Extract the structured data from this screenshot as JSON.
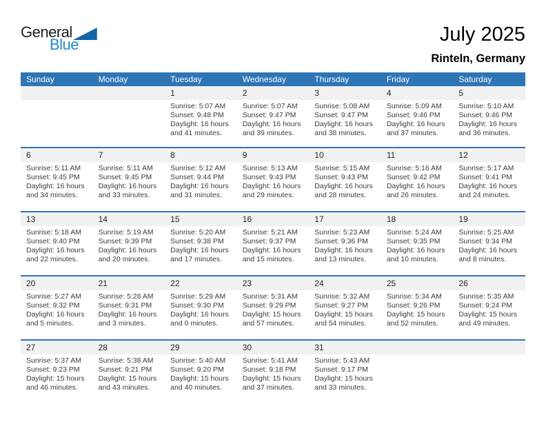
{
  "page": {
    "logo": {
      "general": "General",
      "blue": "Blue",
      "mark": "blue-triangle"
    },
    "title": "July 2025",
    "subtitle": "Rinteln, Germany"
  },
  "colors": {
    "header_blue": "#2E75B6",
    "day_band_gray": "#F1F1F1",
    "logo_blue": "#1E87D5",
    "logo_triangle_blue": "#1566A8",
    "cell_text": "#3C3C3C"
  },
  "calendar": {
    "weekdays": [
      "Sunday",
      "Monday",
      "Tuesday",
      "Wednesday",
      "Thursday",
      "Friday",
      "Saturday"
    ],
    "weeks": [
      [
        null,
        null,
        {
          "day": "1",
          "sunrise": "Sunrise: 5:07 AM",
          "sunset": "Sunset: 9:48 PM",
          "daylight1": "Daylight: 16 hours",
          "daylight2": "and 41 minutes."
        },
        {
          "day": "2",
          "sunrise": "Sunrise: 5:07 AM",
          "sunset": "Sunset: 9:47 PM",
          "daylight1": "Daylight: 16 hours",
          "daylight2": "and 39 minutes."
        },
        {
          "day": "3",
          "sunrise": "Sunrise: 5:08 AM",
          "sunset": "Sunset: 9:47 PM",
          "daylight1": "Daylight: 16 hours",
          "daylight2": "and 38 minutes."
        },
        {
          "day": "4",
          "sunrise": "Sunrise: 5:09 AM",
          "sunset": "Sunset: 9:46 PM",
          "daylight1": "Daylight: 16 hours",
          "daylight2": "and 37 minutes."
        },
        {
          "day": "5",
          "sunrise": "Sunrise: 5:10 AM",
          "sunset": "Sunset: 9:46 PM",
          "daylight1": "Daylight: 16 hours",
          "daylight2": "and 36 minutes."
        }
      ],
      [
        {
          "day": "6",
          "sunrise": "Sunrise: 5:11 AM",
          "sunset": "Sunset: 9:45 PM",
          "daylight1": "Daylight: 16 hours",
          "daylight2": "and 34 minutes."
        },
        {
          "day": "7",
          "sunrise": "Sunrise: 5:11 AM",
          "sunset": "Sunset: 9:45 PM",
          "daylight1": "Daylight: 16 hours",
          "daylight2": "and 33 minutes."
        },
        {
          "day": "8",
          "sunrise": "Sunrise: 5:12 AM",
          "sunset": "Sunset: 9:44 PM",
          "daylight1": "Daylight: 16 hours",
          "daylight2": "and 31 minutes."
        },
        {
          "day": "9",
          "sunrise": "Sunrise: 5:13 AM",
          "sunset": "Sunset: 9:43 PM",
          "daylight1": "Daylight: 16 hours",
          "daylight2": "and 29 minutes."
        },
        {
          "day": "10",
          "sunrise": "Sunrise: 5:15 AM",
          "sunset": "Sunset: 9:43 PM",
          "daylight1": "Daylight: 16 hours",
          "daylight2": "and 28 minutes."
        },
        {
          "day": "11",
          "sunrise": "Sunrise: 5:16 AM",
          "sunset": "Sunset: 9:42 PM",
          "daylight1": "Daylight: 16 hours",
          "daylight2": "and 26 minutes."
        },
        {
          "day": "12",
          "sunrise": "Sunrise: 5:17 AM",
          "sunset": "Sunset: 9:41 PM",
          "daylight1": "Daylight: 16 hours",
          "daylight2": "and 24 minutes."
        }
      ],
      [
        {
          "day": "13",
          "sunrise": "Sunrise: 5:18 AM",
          "sunset": "Sunset: 9:40 PM",
          "daylight1": "Daylight: 16 hours",
          "daylight2": "and 22 minutes."
        },
        {
          "day": "14",
          "sunrise": "Sunrise: 5:19 AM",
          "sunset": "Sunset: 9:39 PM",
          "daylight1": "Daylight: 16 hours",
          "daylight2": "and 20 minutes."
        },
        {
          "day": "15",
          "sunrise": "Sunrise: 5:20 AM",
          "sunset": "Sunset: 9:38 PM",
          "daylight1": "Daylight: 16 hours",
          "daylight2": "and 17 minutes."
        },
        {
          "day": "16",
          "sunrise": "Sunrise: 5:21 AM",
          "sunset": "Sunset: 9:37 PM",
          "daylight1": "Daylight: 16 hours",
          "daylight2": "and 15 minutes."
        },
        {
          "day": "17",
          "sunrise": "Sunrise: 5:23 AM",
          "sunset": "Sunset: 9:36 PM",
          "daylight1": "Daylight: 16 hours",
          "daylight2": "and 13 minutes."
        },
        {
          "day": "18",
          "sunrise": "Sunrise: 5:24 AM",
          "sunset": "Sunset: 9:35 PM",
          "daylight1": "Daylight: 16 hours",
          "daylight2": "and 10 minutes."
        },
        {
          "day": "19",
          "sunrise": "Sunrise: 5:25 AM",
          "sunset": "Sunset: 9:34 PM",
          "daylight1": "Daylight: 16 hours",
          "daylight2": "and 8 minutes."
        }
      ],
      [
        {
          "day": "20",
          "sunrise": "Sunrise: 5:27 AM",
          "sunset": "Sunset: 9:32 PM",
          "daylight1": "Daylight: 16 hours",
          "daylight2": "and 5 minutes."
        },
        {
          "day": "21",
          "sunrise": "Sunrise: 5:28 AM",
          "sunset": "Sunset: 9:31 PM",
          "daylight1": "Daylight: 16 hours",
          "daylight2": "and 3 minutes."
        },
        {
          "day": "22",
          "sunrise": "Sunrise: 5:29 AM",
          "sunset": "Sunset: 9:30 PM",
          "daylight1": "Daylight: 16 hours",
          "daylight2": "and 0 minutes."
        },
        {
          "day": "23",
          "sunrise": "Sunrise: 5:31 AM",
          "sunset": "Sunset: 9:29 PM",
          "daylight1": "Daylight: 15 hours",
          "daylight2": "and 57 minutes."
        },
        {
          "day": "24",
          "sunrise": "Sunrise: 5:32 AM",
          "sunset": "Sunset: 9:27 PM",
          "daylight1": "Daylight: 15 hours",
          "daylight2": "and 54 minutes."
        },
        {
          "day": "25",
          "sunrise": "Sunrise: 5:34 AM",
          "sunset": "Sunset: 9:26 PM",
          "daylight1": "Daylight: 15 hours",
          "daylight2": "and 52 minutes."
        },
        {
          "day": "26",
          "sunrise": "Sunrise: 5:35 AM",
          "sunset": "Sunset: 9:24 PM",
          "daylight1": "Daylight: 15 hours",
          "daylight2": "and 49 minutes."
        }
      ],
      [
        {
          "day": "27",
          "sunrise": "Sunrise: 5:37 AM",
          "sunset": "Sunset: 9:23 PM",
          "daylight1": "Daylight: 15 hours",
          "daylight2": "and 46 minutes."
        },
        {
          "day": "28",
          "sunrise": "Sunrise: 5:38 AM",
          "sunset": "Sunset: 9:21 PM",
          "daylight1": "Daylight: 15 hours",
          "daylight2": "and 43 minutes."
        },
        {
          "day": "29",
          "sunrise": "Sunrise: 5:40 AM",
          "sunset": "Sunset: 9:20 PM",
          "daylight1": "Daylight: 15 hours",
          "daylight2": "and 40 minutes."
        },
        {
          "day": "30",
          "sunrise": "Sunrise: 5:41 AM",
          "sunset": "Sunset: 9:18 PM",
          "daylight1": "Daylight: 15 hours",
          "daylight2": "and 37 minutes."
        },
        {
          "day": "31",
          "sunrise": "Sunrise: 5:43 AM",
          "sunset": "Sunset: 9:17 PM",
          "daylight1": "Daylight: 15 hours",
          "daylight2": "and 33 minutes."
        },
        null,
        null
      ]
    ]
  }
}
